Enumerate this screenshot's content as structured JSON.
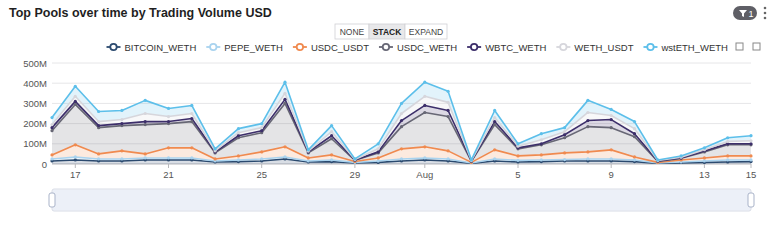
{
  "chart_data": {
    "type": "line",
    "title": "Top Pools over time by Trading Volume USD",
    "controls": [
      "NONE",
      "STACK",
      "EXPAND"
    ],
    "filter_badge": 1,
    "stacked": true,
    "legend": "top",
    "grid": true,
    "marker": "circle",
    "categories": [
      null,
      "17",
      null,
      null,
      null,
      "21",
      null,
      null,
      null,
      "25",
      null,
      null,
      null,
      "29",
      null,
      null,
      "Aug",
      null,
      null,
      null,
      "5",
      null,
      null,
      null,
      "9",
      null,
      null,
      null,
      "13",
      null,
      "15"
    ],
    "ylim": [
      0,
      500
    ],
    "yticks": [
      {
        "value": 0,
        "label": "0"
      },
      {
        "value": 100,
        "label": "100M"
      },
      {
        "value": 200,
        "label": "200M"
      },
      {
        "value": 300,
        "label": "300M"
      },
      {
        "value": 400,
        "label": "400M"
      },
      {
        "value": 500,
        "label": "500M"
      }
    ],
    "series": [
      {
        "name": "BITCOIN_WETH",
        "color": "#2b4a6f",
        "values": [
          15,
          20,
          15,
          15,
          20,
          20,
          20,
          10,
          12,
          15,
          25,
          10,
          12,
          5,
          8,
          15,
          20,
          15,
          3,
          15,
          10,
          12,
          15,
          15,
          15,
          12,
          3,
          5,
          8,
          10,
          12
        ]
      },
      {
        "name": "PEPE_WETH",
        "color": "#a9d3ef",
        "values": [
          10,
          15,
          10,
          10,
          10,
          10,
          10,
          5,
          8,
          10,
          10,
          5,
          8,
          3,
          7,
          10,
          10,
          10,
          2,
          10,
          8,
          8,
          7,
          10,
          10,
          8,
          2,
          5,
          7,
          10,
          8
        ]
      },
      {
        "name": "USDC_USDT",
        "color": "#f08a4f",
        "values": [
          20,
          60,
          25,
          40,
          20,
          50,
          50,
          10,
          20,
          35,
          50,
          15,
          25,
          4,
          15,
          50,
          55,
          40,
          3,
          45,
          22,
          25,
          33,
          35,
          45,
          15,
          3,
          10,
          15,
          20,
          20
        ]
      },
      {
        "name": "USDC_WETH",
        "color": "#676775",
        "values": [
          120,
          200,
          130,
          125,
          145,
          120,
          130,
          30,
          90,
          95,
          215,
          25,
          80,
          6,
          25,
          110,
          170,
          170,
          5,
          125,
          35,
          50,
          75,
          125,
          110,
          100,
          5,
          8,
          30,
          55,
          55
        ]
      },
      {
        "name": "WBTC_WETH",
        "color": "#3c2e6a",
        "values": [
          15,
          15,
          10,
          10,
          15,
          10,
          15,
          5,
          10,
          10,
          20,
          5,
          15,
          2,
          5,
          30,
          35,
          30,
          2,
          15,
          5,
          5,
          15,
          30,
          40,
          15,
          2,
          2,
          5,
          5,
          5
        ]
      },
      {
        "name": "WETH_USDT",
        "color": "#d6d6dc",
        "values": [
          15,
          25,
          20,
          20,
          40,
          25,
          25,
          5,
          15,
          15,
          30,
          4,
          20,
          2,
          15,
          35,
          45,
          40,
          2,
          20,
          8,
          20,
          15,
          40,
          20,
          25,
          2,
          4,
          6,
          12,
          15
        ]
      },
      {
        "name": "wstETH_WETH",
        "color": "#5cbfea",
        "values": [
          35,
          50,
          50,
          45,
          65,
          40,
          40,
          10,
          20,
          20,
          55,
          6,
          30,
          3,
          25,
          50,
          70,
          55,
          3,
          35,
          12,
          30,
          20,
          60,
          30,
          35,
          3,
          6,
          9,
          18,
          25
        ]
      }
    ]
  }
}
